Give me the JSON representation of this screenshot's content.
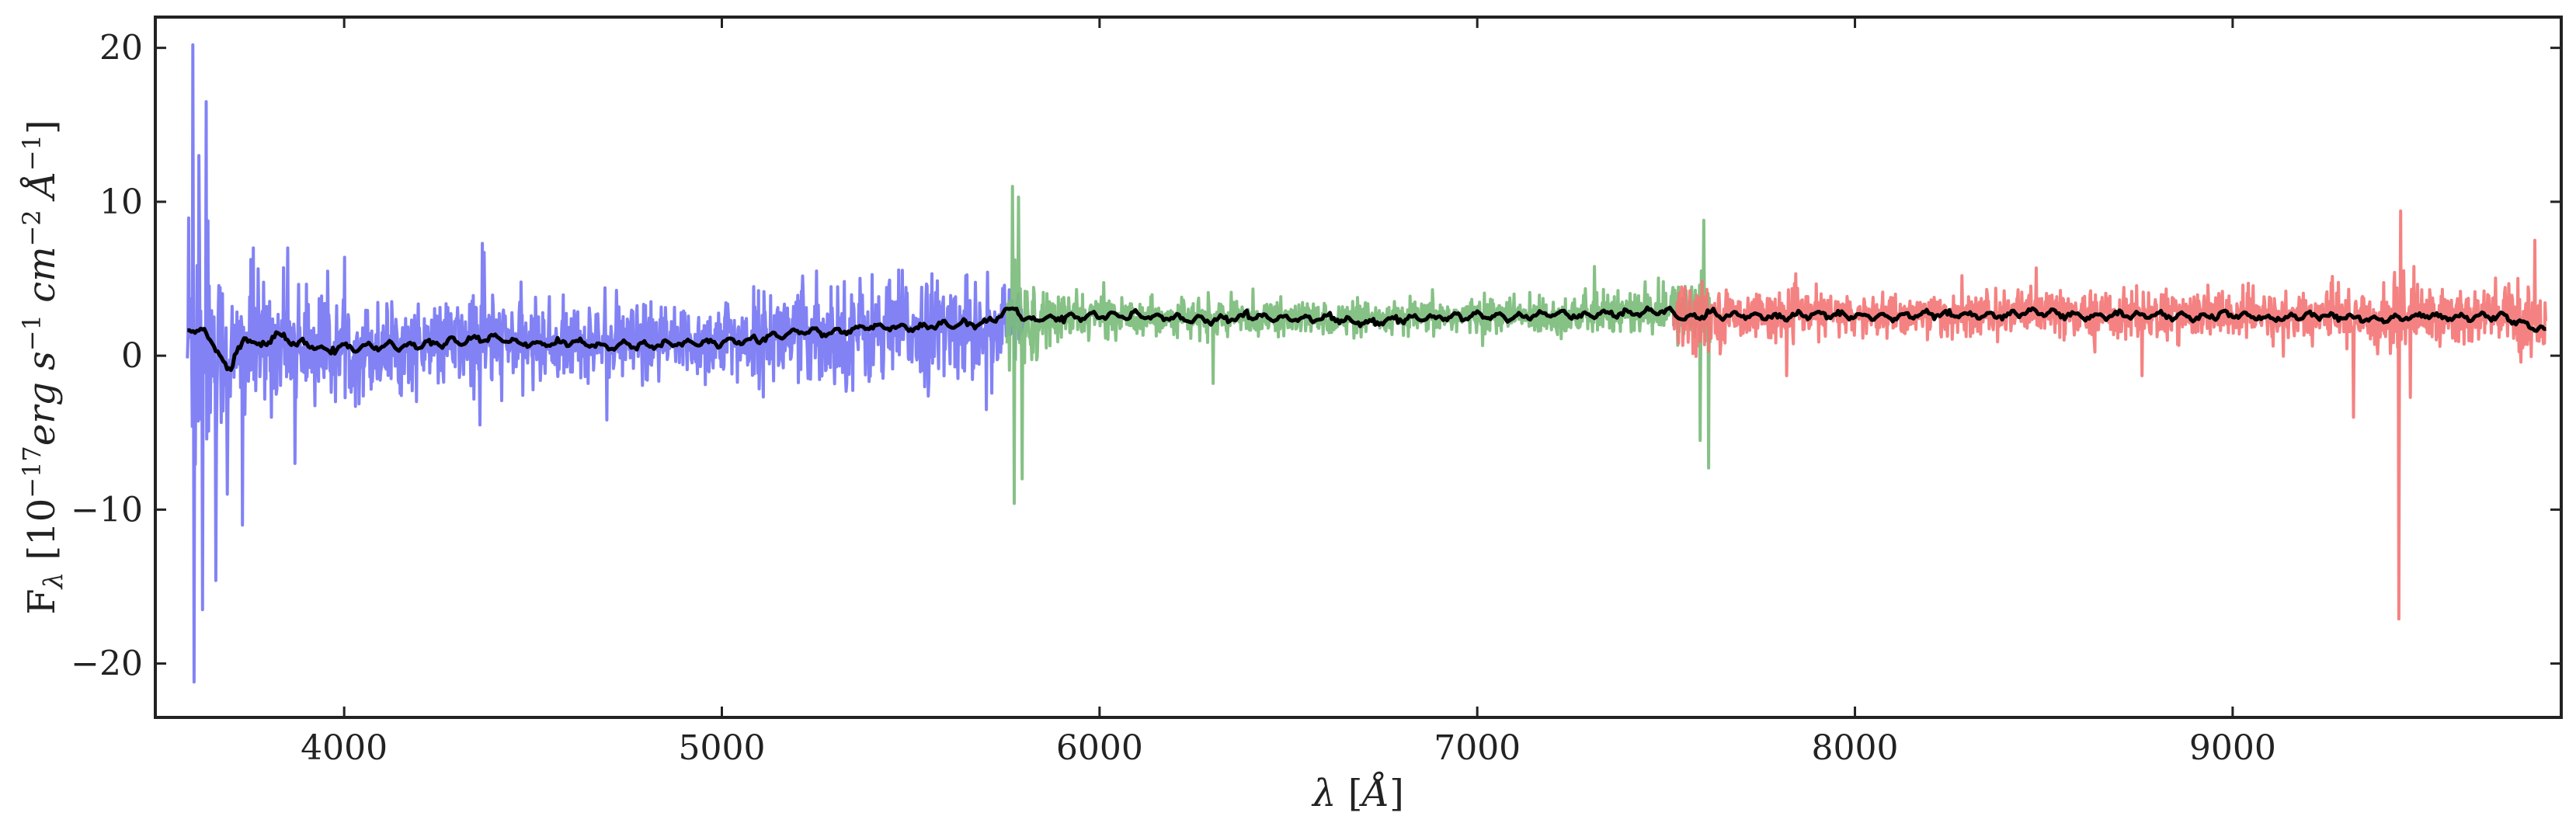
{
  "chart_data": {
    "type": "line",
    "title": "",
    "xlabel": "λ [Å]",
    "ylabel": "F_λ [10^-17 erg s^-1 cm^-2 Å^-1]",
    "xlim": [
      3500,
      9870
    ],
    "ylim": [
      -23.5,
      22.0
    ],
    "x_ticks": [
      4000,
      5000,
      6000,
      7000,
      8000,
      9000
    ],
    "x_tick_labels": [
      "4000",
      "5000",
      "6000",
      "7000",
      "8000",
      "9000"
    ],
    "y_ticks": [
      20,
      10,
      0,
      -10,
      -20
    ],
    "y_tick_labels": [
      "20",
      "10",
      "0",
      "−10",
      "−20"
    ],
    "grid": false,
    "series": [
      {
        "color": "#7777f4",
        "x_range": [
          3585,
          5800
        ],
        "x": [
          3585,
          3600,
          3620,
          3650,
          3700,
          3750,
          3800,
          3900,
          4000,
          4100,
          4200,
          4300,
          4360,
          4400,
          4500,
          4600,
          4700,
          4800,
          4900,
          5000,
          5100,
          5200,
          5300,
          5400,
          5500,
          5600,
          5700,
          5800
        ],
        "y": [
          1.5,
          1.2,
          1.6,
          0.8,
          -0.2,
          0.3,
          0.9,
          0.6,
          0.4,
          0.5,
          0.6,
          0.8,
          1.0,
          0.9,
          0.8,
          0.8,
          0.9,
          0.7,
          0.8,
          1.0,
          1.1,
          1.4,
          1.5,
          1.6,
          1.7,
          1.8,
          2.0,
          2.1
        ],
        "noise_envelope": [
          12,
          12,
          11,
          7,
          5,
          5,
          4.5,
          4,
          3.5,
          3.2,
          3,
          3,
          4.5,
          3,
          2.8,
          2.8,
          2.8,
          2.8,
          2.8,
          3,
          3.2,
          3.5,
          3.8,
          3.8,
          3.8,
          3.6,
          3.2,
          2.8
        ],
        "spikes": [
          [
            3600,
            20.2
          ],
          [
            3603,
            -21.2
          ],
          [
            3615,
            13.0
          ],
          [
            3625,
            -16.5
          ],
          [
            3635,
            16.5
          ],
          [
            3660,
            -14.6
          ],
          [
            3690,
            -9.0
          ],
          [
            3730,
            -11.0
          ],
          [
            3760,
            7.0
          ],
          [
            3850,
            7.0
          ],
          [
            3870,
            -7.0
          ],
          [
            4370,
            6.7
          ],
          [
            4360,
            -4.5
          ],
          [
            5250,
            5.5
          ],
          [
            5700,
            -3.5
          ]
        ]
      },
      {
        "color": "#7cbc7c",
        "x_range": [
          5755,
          7620
        ],
        "x": [
          5755,
          5800,
          5900,
          6000,
          6100,
          6200,
          6300,
          6400,
          6500,
          6600,
          6700,
          6800,
          6900,
          7000,
          7100,
          7200,
          7300,
          7400,
          7500,
          7620
        ],
        "y": [
          2.0,
          2.2,
          2.4,
          2.6,
          2.6,
          2.5,
          2.4,
          2.5,
          2.4,
          2.4,
          2.3,
          2.4,
          2.5,
          2.6,
          2.6,
          2.6,
          2.6,
          2.8,
          2.9,
          2.8
        ],
        "noise_envelope": [
          6,
          3,
          1.8,
          1.5,
          1.2,
          1.2,
          1.3,
          1.2,
          1.2,
          1.2,
          1.2,
          1.2,
          1.3,
          1.3,
          1.3,
          1.4,
          1.5,
          1.6,
          1.8,
          3
        ],
        "spikes": [
          [
            5770,
            11.0
          ],
          [
            5775,
            -9.6
          ],
          [
            5785,
            10.3
          ],
          [
            5795,
            -8.0
          ],
          [
            6300,
            -1.8
          ],
          [
            7310,
            5.8
          ],
          [
            7600,
            8.8
          ],
          [
            7612,
            -7.3
          ],
          [
            7590,
            -5.5
          ]
        ]
      },
      {
        "color": "#f47777",
        "x_range": [
          7520,
          9830
        ],
        "x": [
          7520,
          7600,
          7700,
          7800,
          7900,
          8000,
          8100,
          8200,
          8300,
          8400,
          8500,
          8600,
          8700,
          8800,
          8900,
          9000,
          9100,
          9200,
          9300,
          9400,
          9500,
          9600,
          9700,
          9830
        ],
        "y": [
          2.8,
          2.6,
          2.6,
          2.6,
          2.7,
          2.6,
          2.6,
          2.7,
          2.6,
          2.7,
          2.8,
          2.6,
          2.7,
          2.6,
          2.6,
          2.7,
          2.5,
          2.5,
          2.6,
          2.4,
          2.6,
          2.5,
          2.6,
          2.2
        ],
        "noise_envelope": [
          3,
          2,
          1.6,
          1.6,
          1.5,
          1.5,
          1.5,
          1.6,
          1.6,
          1.6,
          1.7,
          1.7,
          1.8,
          1.8,
          1.8,
          1.8,
          1.8,
          1.8,
          2.2,
          2.5,
          2.5,
          2.4,
          2.4,
          2.6
        ],
        "spikes": [
          [
            7820,
            -1.3
          ],
          [
            8480,
            5.7
          ],
          [
            8760,
            -1.3
          ],
          [
            9320,
            -4.0
          ],
          [
            9440,
            -17.1
          ],
          [
            9445,
            9.4
          ],
          [
            9470,
            -2.7
          ],
          [
            9480,
            5.8
          ],
          [
            9800,
            7.5
          ]
        ]
      },
      {
        "color": "#000000",
        "x_range": [
          3585,
          9830
        ],
        "x": [
          3585,
          3600,
          3630,
          3660,
          3700,
          3740,
          3780,
          3820,
          3860,
          3900,
          3950,
          4000,
          4100,
          4200,
          4300,
          4400,
          4500,
          4600,
          4700,
          4800,
          4900,
          5000,
          5100,
          5200,
          5300,
          5400,
          5500,
          5600,
          5700,
          5780,
          5800,
          5900,
          6000,
          6100,
          6200,
          6300,
          6400,
          6500,
          6600,
          6700,
          6800,
          6900,
          7000,
          7100,
          7200,
          7300,
          7400,
          7500,
          7550,
          7600,
          7700,
          7800,
          7900,
          8000,
          8100,
          8200,
          8300,
          8400,
          8500,
          8600,
          8700,
          8800,
          8900,
          9000,
          9100,
          9200,
          9300,
          9400,
          9500,
          9600,
          9700,
          9830
        ],
        "y": [
          1.8,
          1.4,
          1.9,
          0.2,
          -0.8,
          1.3,
          0.5,
          1.4,
          0.9,
          0.7,
          0.4,
          0.5,
          0.6,
          0.7,
          0.9,
          1.2,
          0.7,
          0.9,
          0.6,
          0.7,
          0.8,
          0.9,
          1.0,
          1.6,
          1.5,
          1.9,
          1.8,
          2.0,
          2.1,
          3.2,
          2.3,
          2.5,
          2.6,
          2.6,
          2.4,
          2.3,
          2.6,
          2.4,
          2.5,
          2.1,
          2.4,
          2.5,
          2.6,
          2.5,
          2.7,
          2.6,
          2.8,
          2.9,
          2.4,
          2.7,
          2.6,
          2.5,
          2.7,
          2.6,
          2.5,
          2.7,
          2.6,
          2.6,
          2.9,
          2.5,
          2.7,
          2.6,
          2.5,
          2.7,
          2.4,
          2.6,
          2.5,
          2.3,
          2.6,
          2.5,
          2.6,
          1.6
        ]
      }
    ]
  }
}
